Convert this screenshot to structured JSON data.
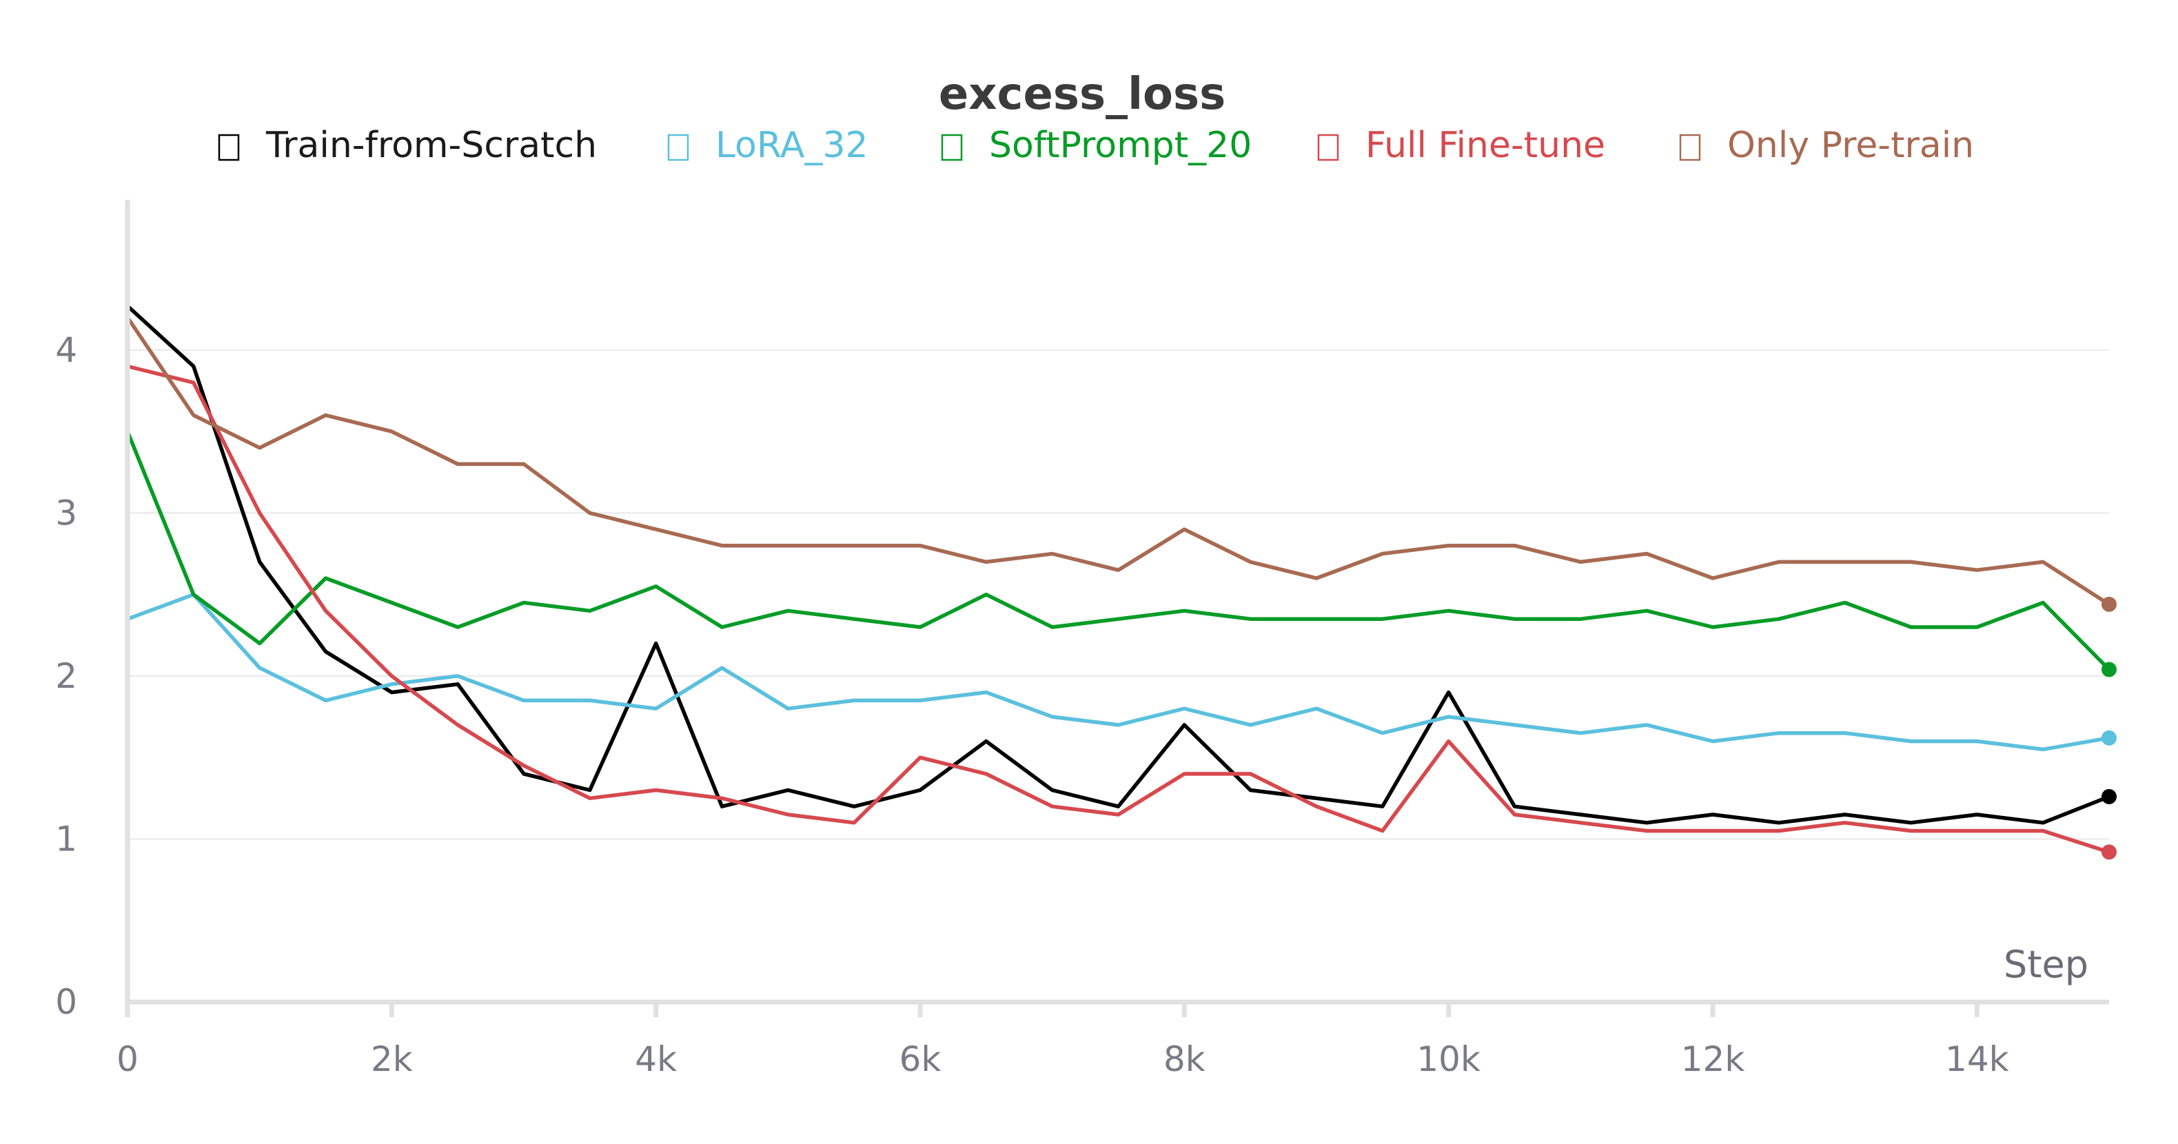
{
  "chart_data": {
    "type": "line",
    "title": "excess_loss",
    "xlabel": "Step",
    "ylabel": "",
    "xlim": [
      0,
      15000
    ],
    "ylim": [
      0,
      4.9
    ],
    "xticks": [
      0,
      2000,
      4000,
      6000,
      8000,
      10000,
      12000,
      14000
    ],
    "xtick_labels": [
      "0",
      "2k",
      "4k",
      "6k",
      "8k",
      "10k",
      "12k",
      "14k"
    ],
    "yticks": [
      0,
      1,
      2,
      3,
      4
    ],
    "ytick_labels": [
      "0",
      "1",
      "2",
      "3",
      "4"
    ],
    "grid": true,
    "legend_position": "top",
    "x": [
      0,
      500,
      1000,
      1500,
      2000,
      2500,
      3000,
      3500,
      4000,
      4500,
      5000,
      5500,
      6000,
      6500,
      7000,
      7500,
      8000,
      8500,
      9000,
      9500,
      10000,
      10500,
      11000,
      11500,
      12000,
      12500,
      13000,
      13500,
      14000,
      14500,
      15000
    ],
    "series": [
      {
        "name": "Train-from-Scratch",
        "color": "#000000",
        "values": [
          4.27,
          3.9,
          2.7,
          2.15,
          1.9,
          1.95,
          1.4,
          1.3,
          2.2,
          1.2,
          1.3,
          1.2,
          1.3,
          1.6,
          1.3,
          1.2,
          1.7,
          1.3,
          1.25,
          1.2,
          1.9,
          1.2,
          1.15,
          1.1,
          1.15,
          1.1,
          1.15,
          1.1,
          1.15,
          1.1,
          1.26
        ]
      },
      {
        "name": "LoRA_32",
        "color": "#5bc0de",
        "values": [
          2.35,
          2.5,
          2.05,
          1.85,
          1.95,
          2.0,
          1.85,
          1.85,
          1.8,
          2.05,
          1.8,
          1.85,
          1.85,
          1.9,
          1.75,
          1.7,
          1.8,
          1.7,
          1.8,
          1.65,
          1.75,
          1.7,
          1.65,
          1.7,
          1.6,
          1.65,
          1.65,
          1.6,
          1.6,
          1.55,
          1.62
        ]
      },
      {
        "name": "SoftPrompt_20",
        "color": "#079c27",
        "values": [
          3.5,
          2.5,
          2.2,
          2.6,
          2.45,
          2.3,
          2.45,
          2.4,
          2.55,
          2.3,
          2.4,
          2.35,
          2.3,
          2.5,
          2.3,
          2.35,
          2.4,
          2.35,
          2.35,
          2.35,
          2.4,
          2.35,
          2.35,
          2.4,
          2.3,
          2.35,
          2.45,
          2.3,
          2.3,
          2.45,
          2.04
        ]
      },
      {
        "name": "Full Fine-tune",
        "color": "#d6494e",
        "values": [
          3.9,
          3.8,
          3.0,
          2.4,
          2.0,
          1.7,
          1.45,
          1.25,
          1.3,
          1.25,
          1.15,
          1.1,
          1.5,
          1.4,
          1.2,
          1.15,
          1.4,
          1.4,
          1.2,
          1.05,
          1.6,
          1.15,
          1.1,
          1.05,
          1.05,
          1.05,
          1.1,
          1.05,
          1.05,
          1.05,
          0.92
        ]
      },
      {
        "name": "Only Pre-train",
        "color": "#a86a52",
        "values": [
          4.2,
          3.6,
          3.4,
          3.6,
          3.5,
          3.3,
          3.3,
          3.0,
          2.9,
          2.8,
          2.8,
          2.8,
          2.8,
          2.7,
          2.75,
          2.65,
          2.9,
          2.7,
          2.6,
          2.75,
          2.8,
          2.8,
          2.7,
          2.75,
          2.6,
          2.7,
          2.7,
          2.7,
          2.65,
          2.7,
          2.44
        ]
      }
    ]
  }
}
